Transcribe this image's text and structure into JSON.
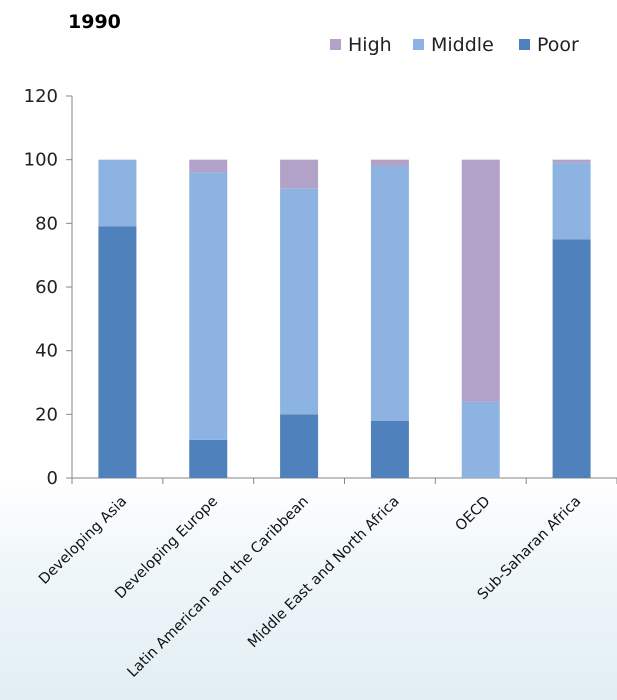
{
  "chart_data": {
    "type": "bar",
    "stacked": true,
    "title": "1990",
    "categories": [
      "Developing Asia",
      "Developing Europe",
      "Latin American and the Caribbean",
      "Middle East and North Africa",
      "OECD",
      "Sub-Saharan Africa"
    ],
    "series": [
      {
        "name": "Poor",
        "values": [
          79,
          12,
          20,
          18,
          0,
          75
        ],
        "color": "#4f81bd"
      },
      {
        "name": "Middle",
        "values": [
          21,
          84,
          71,
          80,
          24,
          24
        ],
        "color": "#8db3e2"
      },
      {
        "name": "High",
        "values": [
          0,
          4,
          9,
          2,
          76,
          1
        ],
        "color": "#b2a2c7"
      }
    ],
    "legend_order": [
      "High",
      "Middle",
      "Poor"
    ],
    "legend_position": "top-right",
    "ylim": [
      0,
      120
    ],
    "yticks": [
      "0",
      "20",
      "40",
      "60",
      "80",
      "100",
      "120"
    ],
    "grid": false
  }
}
